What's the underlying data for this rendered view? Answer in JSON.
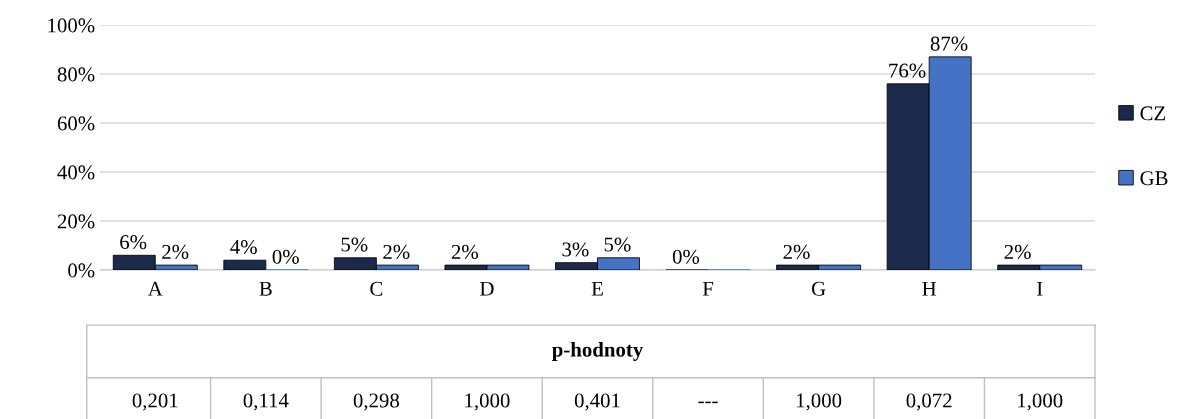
{
  "chart_data": {
    "type": "bar",
    "categories": [
      "A",
      "B",
      "C",
      "D",
      "E",
      "F",
      "G",
      "H",
      "I"
    ],
    "series": [
      {
        "name": "CZ",
        "color": "#1b2a4a",
        "values": [
          6,
          4,
          5,
          2,
          3,
          0,
          2,
          76,
          2
        ],
        "value_labels": [
          "6%",
          "4%",
          "5%",
          "2%",
          "3%",
          "0%",
          "2%",
          "76%",
          "2%"
        ]
      },
      {
        "name": "GB",
        "color": "#4472c4",
        "values": [
          2,
          0,
          2,
          2,
          5,
          0,
          2,
          87,
          2
        ],
        "value_labels": [
          "2%",
          "0%",
          "2%",
          null,
          "5%",
          null,
          null,
          "87%",
          null
        ]
      }
    ],
    "ylim": [
      0,
      100
    ],
    "yticks": [
      {
        "value": 0,
        "label": "0%"
      },
      {
        "value": 20,
        "label": "20%"
      },
      {
        "value": 40,
        "label": "40%"
      },
      {
        "value": 60,
        "label": "60%"
      },
      {
        "value": 80,
        "label": "80%"
      },
      {
        "value": 100,
        "label": "100%"
      }
    ],
    "grid": "y",
    "legend": "right",
    "annotations": [
      "p-hodnoty",
      "0,201",
      "0,114",
      "0,298",
      "1,000",
      "0,401",
      "---",
      "1,000",
      "0,072",
      "1,000"
    ]
  }
}
